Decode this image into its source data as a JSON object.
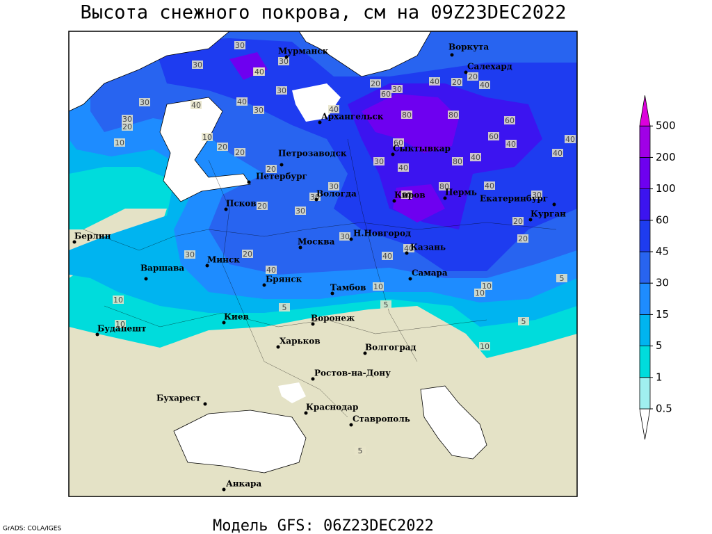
{
  "title": "Высота снежного покрова, см на 09Z23DEC2022",
  "model": "Модель GFS: 06Z23DEC2022",
  "footer_left": "GrADS: COLA/IGES",
  "cities": [
    "Мурманск",
    "Воркута",
    "Салехард",
    "Архангельск",
    "Петрозаводск",
    "Сыктывкар",
    "Петербург",
    "Вологда",
    "Киров",
    "Пермь",
    "Екатеринбург",
    "Курган",
    "Псков",
    "Берлин",
    "Н.Новгород",
    "Казань",
    "Минск",
    "Москва",
    "Варшава",
    "Самара",
    "Брянск",
    "Тамбов",
    "Киев",
    "Воронеж",
    "Будапешт",
    "Харьков",
    "Волгоград",
    "Ростов-на-Дону",
    "Бухарест",
    "Краснодар",
    "Ставрополь",
    "Анкара"
  ],
  "contour_labels": [
    30,
    30,
    40,
    30,
    20,
    30,
    40,
    20,
    40,
    20,
    40,
    60,
    80,
    80,
    60,
    60,
    40,
    40,
    40,
    60,
    80,
    40,
    30,
    40,
    40,
    30,
    60,
    80,
    20,
    20,
    30,
    30,
    30,
    20,
    20,
    20,
    20,
    10,
    40,
    30,
    30,
    40,
    40,
    30,
    30,
    20,
    10,
    30,
    20,
    40,
    30,
    40,
    40,
    10,
    10,
    10,
    5,
    5,
    5,
    10,
    10,
    5,
    10,
    5
  ],
  "colorbar": {
    "levels": [
      0.5,
      1,
      5,
      15,
      30,
      45,
      60,
      100,
      200,
      500
    ],
    "colors": [
      "#ffffff",
      "#a0f0f0",
      "#00dcdc",
      "#00b4f0",
      "#1e8cff",
      "#2864f0",
      "#1e3cf0",
      "#3c14f0",
      "#6e00f0",
      "#a000e6",
      "#dc00dc"
    ]
  }
}
